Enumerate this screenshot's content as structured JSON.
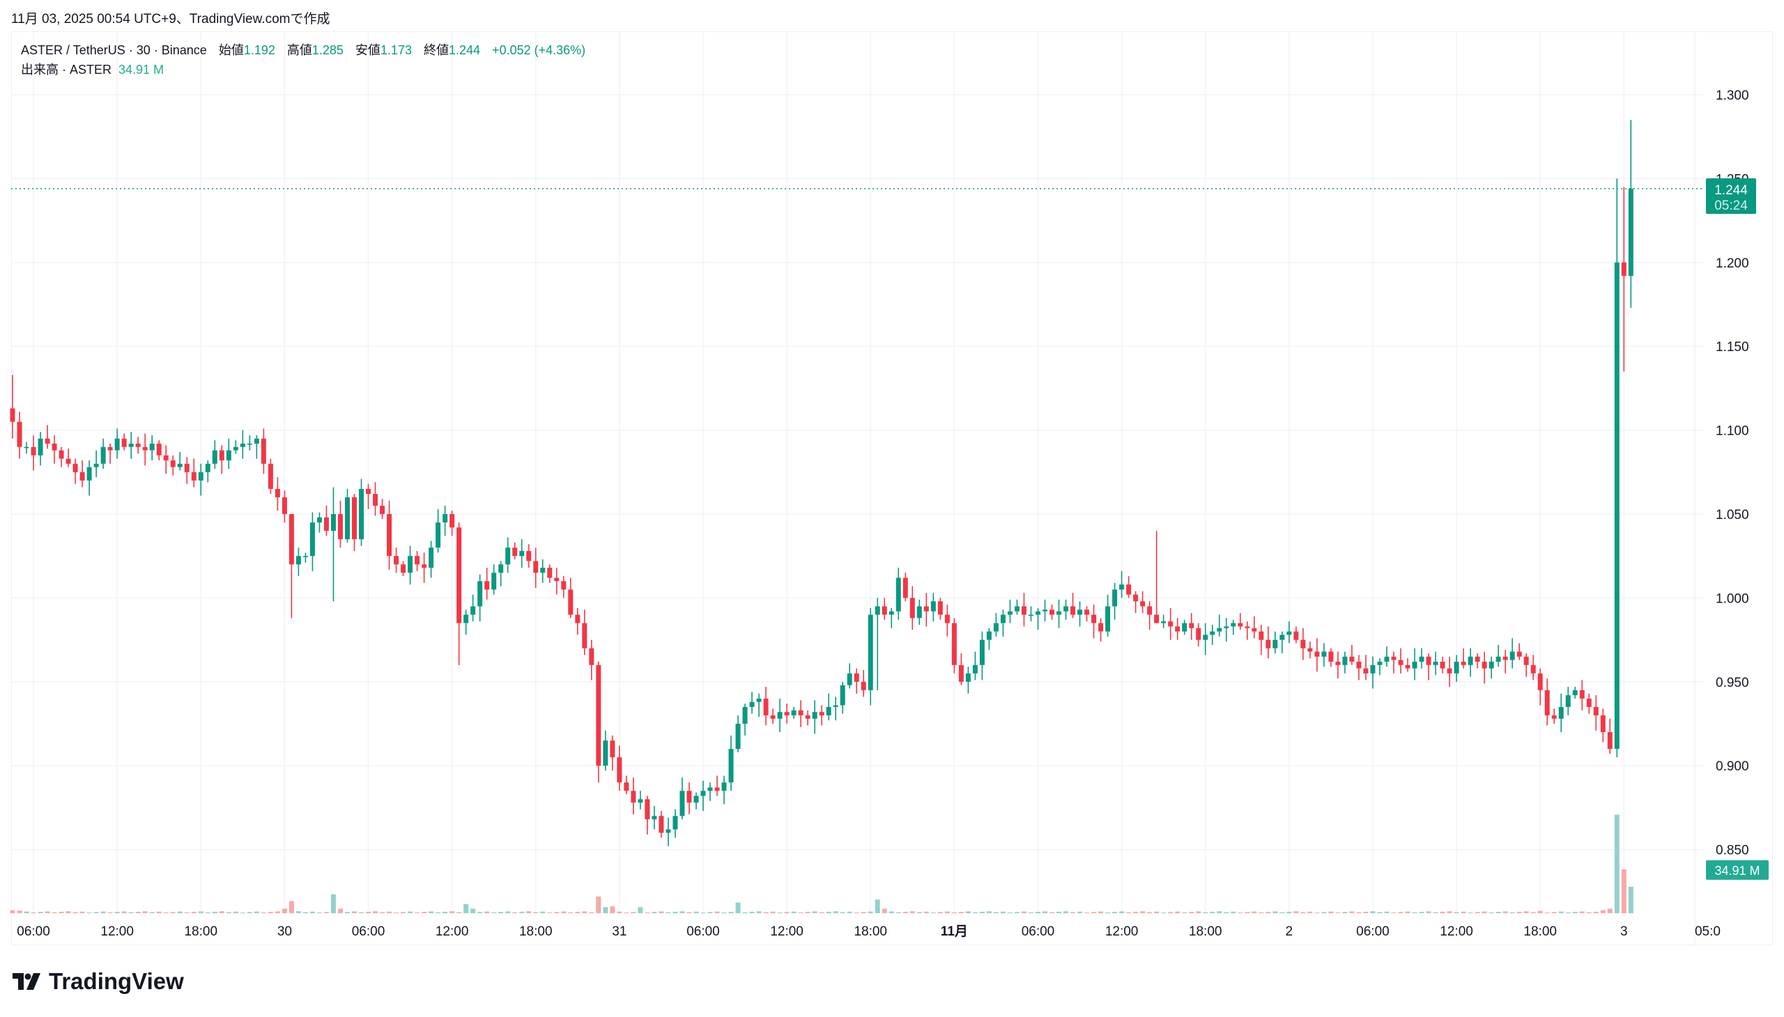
{
  "caption": "11月 03, 2025 00:54 UTC+9、TradingView.comで作成",
  "legend": {
    "symbol": "ASTER / TetherUS · 30 · Binance",
    "open_label": "始値",
    "open": "1.192",
    "high_label": "高値",
    "high": "1.285",
    "low_label": "安値",
    "low": "1.173",
    "close_label": "終値",
    "close": "1.244",
    "change": "+0.052 (+4.36%)",
    "volume_label": "出来高 · ASTER",
    "volume": "34.91 M"
  },
  "price_box": {
    "price": "1.244",
    "countdown": "05:24"
  },
  "volume_box": "34.91 M",
  "logo_text": "TradingView",
  "colors": {
    "up": "#089981",
    "down": "#f23645",
    "up_vol": "#92d2cc",
    "down_vol": "#f7a9a7",
    "grid": "#f0f3fa"
  },
  "chart_data": {
    "type": "candlestick",
    "title": "ASTER / TetherUS · 30 · Binance",
    "interval_minutes": 30,
    "ylim": [
      0.85,
      1.3
    ],
    "y_ticks": [
      "0.850",
      "0.900",
      "0.950",
      "1.000",
      "1.050",
      "1.100",
      "1.150",
      "1.200",
      "1.250",
      "1.300"
    ],
    "x_ticks": [
      {
        "candle": 3,
        "label": "06:00"
      },
      {
        "candle": 15,
        "label": "12:00"
      },
      {
        "candle": 27,
        "label": "18:00"
      },
      {
        "candle": 39,
        "label": "30"
      },
      {
        "candle": 51,
        "label": "06:00"
      },
      {
        "candle": 63,
        "label": "12:00"
      },
      {
        "candle": 75,
        "label": "18:00"
      },
      {
        "candle": 87,
        "label": "31"
      },
      {
        "candle": 99,
        "label": "06:00"
      },
      {
        "candle": 111,
        "label": "12:00"
      },
      {
        "candle": 123,
        "label": "18:00"
      },
      {
        "candle": 135,
        "label": "11月"
      },
      {
        "candle": 147,
        "label": "06:00"
      },
      {
        "candle": 159,
        "label": "12:00"
      },
      {
        "candle": 171,
        "label": "18:00"
      },
      {
        "candle": 183,
        "label": "2"
      },
      {
        "candle": 195,
        "label": "06:00"
      },
      {
        "candle": 207,
        "label": "12:00"
      },
      {
        "candle": 219,
        "label": "18:00"
      },
      {
        "candle": 231,
        "label": "3"
      },
      {
        "candle": 243,
        "label": "05:0"
      }
    ],
    "first_open": 1.113,
    "closes": [
      1.105,
      1.09,
      1.09,
      1.085,
      1.095,
      1.092,
      1.088,
      1.083,
      1.08,
      1.075,
      1.07,
      1.078,
      1.08,
      1.09,
      1.088,
      1.095,
      1.09,
      1.092,
      1.09,
      1.088,
      1.092,
      1.085,
      1.082,
      1.078,
      1.08,
      1.075,
      1.07,
      1.075,
      1.08,
      1.088,
      1.082,
      1.088,
      1.09,
      1.092,
      1.092,
      1.095,
      1.08,
      1.065,
      1.06,
      1.05,
      1.02,
      1.025,
      1.025,
      1.045,
      1.048,
      1.04,
      1.05,
      1.035,
      1.06,
      1.035,
      1.065,
      1.062,
      1.055,
      1.05,
      1.025,
      1.02,
      1.015,
      1.025,
      1.02,
      1.018,
      1.03,
      1.045,
      1.05,
      1.042,
      0.985,
      0.99,
      0.995,
      1.01,
      1.005,
      1.015,
      1.02,
      1.03,
      1.025,
      1.028,
      1.022,
      1.015,
      1.018,
      1.012,
      1.01,
      1.005,
      0.99,
      0.985,
      0.97,
      0.96,
      0.9,
      0.915,
      0.905,
      0.89,
      0.885,
      0.878,
      0.88,
      0.868,
      0.87,
      0.86,
      0.862,
      0.87,
      0.885,
      0.878,
      0.882,
      0.885,
      0.887,
      0.885,
      0.89,
      0.91,
      0.925,
      0.935,
      0.938,
      0.94,
      0.93,
      0.928,
      0.932,
      0.93,
      0.933,
      0.93,
      0.928,
      0.932,
      0.93,
      0.935,
      0.936,
      0.948,
      0.955,
      0.95,
      0.945,
      0.99,
      0.995,
      0.99,
      0.992,
      1.012,
      1.0,
      0.988,
      0.995,
      0.992,
      0.998,
      0.99,
      0.985,
      0.96,
      0.95,
      0.955,
      0.96,
      0.975,
      0.98,
      0.985,
      0.99,
      0.992,
      0.995,
      0.99,
      0.99,
      0.992,
      0.993,
      0.99,
      0.992,
      0.995,
      0.99,
      0.993,
      0.99,
      0.985,
      0.98,
      0.995,
      1.005,
      1.008,
      1.002,
      0.998,
      0.995,
      0.99,
      0.985,
      0.986,
      0.983,
      0.98,
      0.985,
      0.982,
      0.975,
      0.978,
      0.98,
      0.982,
      0.983,
      0.985,
      0.983,
      0.982,
      0.98,
      0.975,
      0.97,
      0.975,
      0.978,
      0.98,
      0.975,
      0.97,
      0.968,
      0.965,
      0.968,
      0.962,
      0.96,
      0.965,
      0.962,
      0.958,
      0.955,
      0.96,
      0.962,
      0.965,
      0.963,
      0.96,
      0.958,
      0.962,
      0.965,
      0.96,
      0.962,
      0.958,
      0.955,
      0.962,
      0.96,
      0.965,
      0.962,
      0.958,
      0.962,
      0.965,
      0.963,
      0.968,
      0.965,
      0.96,
      0.955,
      0.945,
      0.93,
      0.928,
      0.935,
      0.942,
      0.945,
      0.94,
      0.935,
      0.93,
      0.92,
      0.91,
      1.2,
      1.192,
      1.244
    ],
    "notable_wicks": [
      {
        "candle": 0,
        "high": 1.133,
        "low": 1.095
      },
      {
        "candle": 40,
        "high": 1.04,
        "low": 0.988
      },
      {
        "candle": 46,
        "high": 1.066,
        "low": 0.998
      },
      {
        "candle": 64,
        "high": 1.045,
        "low": 0.96
      },
      {
        "candle": 84,
        "high": 0.962,
        "low": 0.89
      },
      {
        "candle": 124,
        "high": 1.0,
        "low": 0.945
      },
      {
        "candle": 164,
        "high": 1.04,
        "low": 0.99
      },
      {
        "candle": 230,
        "high": 1.25,
        "low": 0.905
      },
      {
        "candle": 231,
        "high": 1.245,
        "low": 1.135
      },
      {
        "candle": 232,
        "high": 1.285,
        "low": 1.173
      }
    ],
    "volume_unit": "M",
    "volume_base": 1.6,
    "volume_overrides": {
      "0": 4,
      "1": 3.5,
      "39": 6,
      "40": 16,
      "46": 25,
      "47": 6,
      "65": 12,
      "66": 6,
      "84": 22,
      "85": 8,
      "86": 9,
      "90": 8,
      "104": 14,
      "124": 18,
      "125": 6,
      "219": 3,
      "228": 4,
      "229": 6,
      "230": 130,
      "231": 58,
      "232": 34.91
    },
    "last_price": 1.244
  }
}
